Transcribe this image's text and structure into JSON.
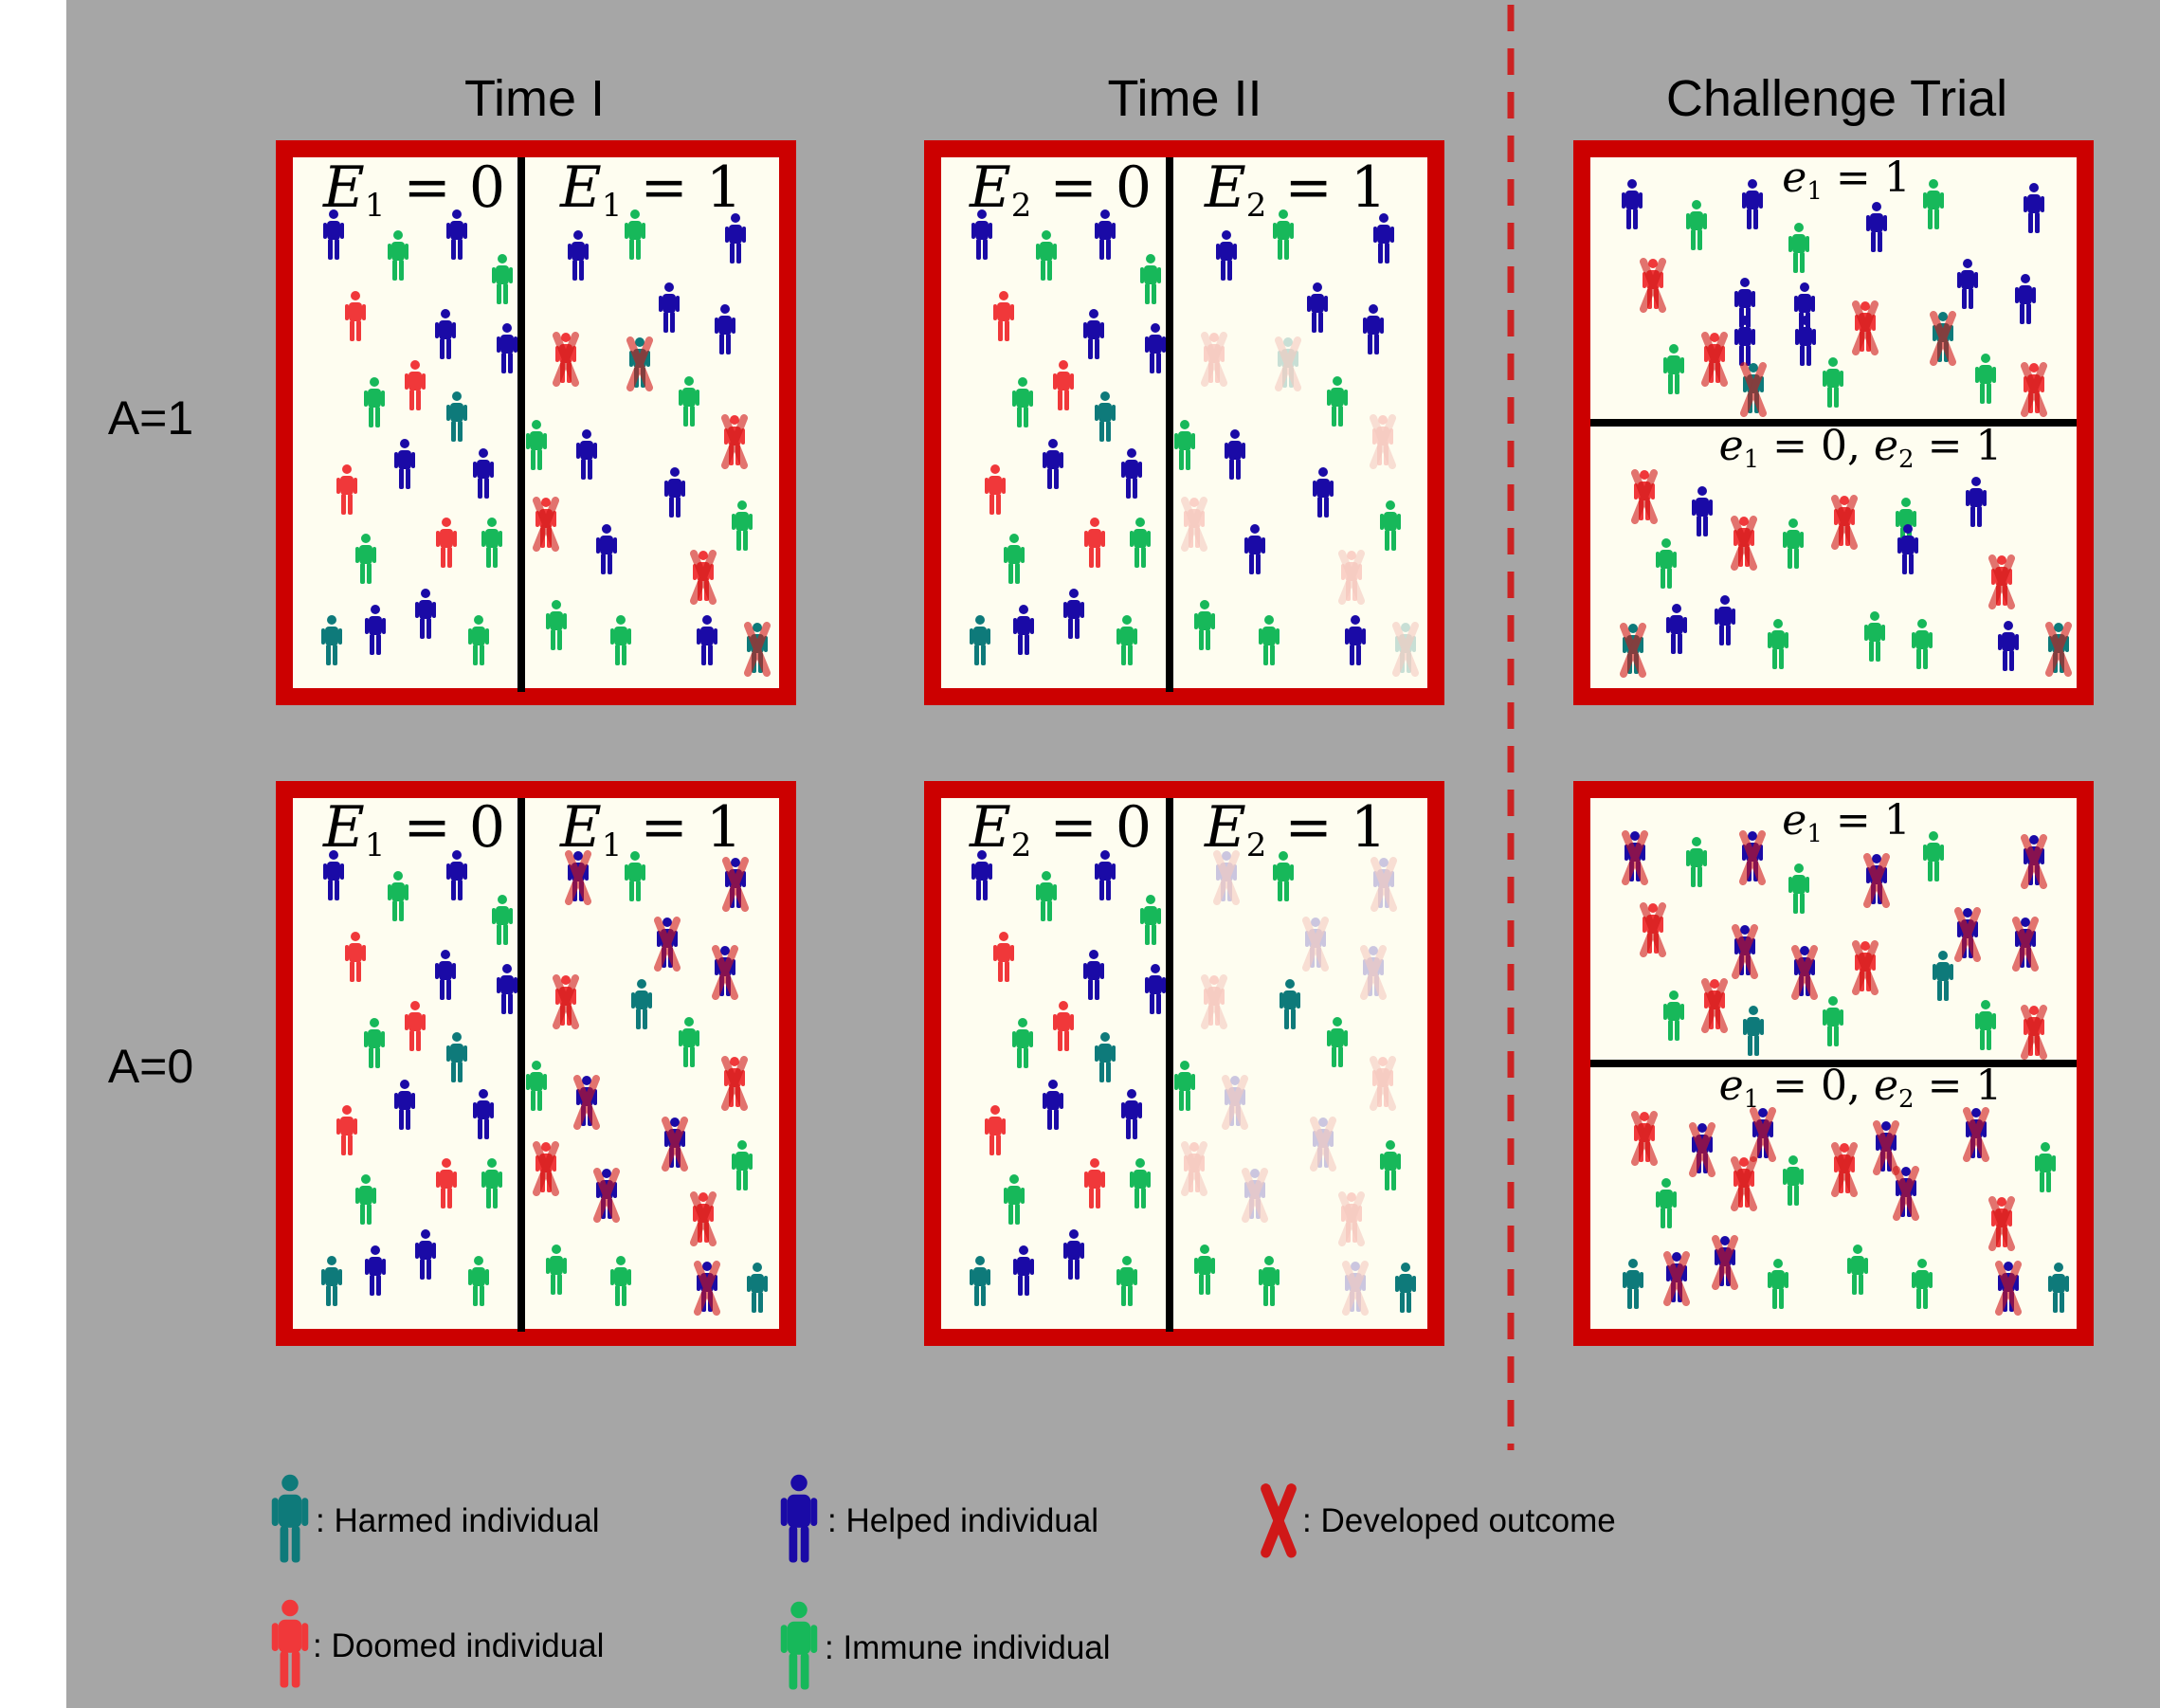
{
  "columns": {
    "time1": "Time I",
    "time2": "Time II",
    "challenge": "Challenge Trial"
  },
  "rows": {
    "a1": "A=1",
    "a0": "A=0"
  },
  "panel_labels": {
    "t1_e0": {
      "var": "E",
      "sub": "1",
      "rest": " = 0"
    },
    "t1_e1": {
      "var": "E",
      "sub": "1",
      "rest": " = 1"
    },
    "t2_e0": {
      "var": "E",
      "sub": "2",
      "rest": " = 0"
    },
    "t2_e1": {
      "var": "E",
      "sub": "2",
      "rest": " = 1"
    },
    "ch_top": {
      "var": "e",
      "sub": "1",
      "rest": " = 1"
    },
    "ch_bottom": {
      "var1": "e",
      "sub1": "1",
      "mid": " = 0, ",
      "var2": "e",
      "sub2": "2",
      "rest": " = 1"
    }
  },
  "legend": [
    {
      "type": "harmed",
      "label": ": Harmed individual"
    },
    {
      "type": "helped",
      "label": ": Helped individual"
    },
    {
      "type": "outcome",
      "label": ": Developed outcome"
    },
    {
      "type": "doomed",
      "label": ": Doomed individual"
    },
    {
      "type": "immune",
      "label": ": Immune individual"
    }
  ],
  "colors": {
    "background": "#a6a6a6",
    "panel_border": "#cc0000",
    "panel_fill": "#fefdf0",
    "harmed": "#0e7a7a",
    "helped": "#1a0aa6",
    "doomed": "#f0383a",
    "immune": "#17b85a",
    "outcome": "#d01818",
    "divider": "#cc2222"
  }
}
